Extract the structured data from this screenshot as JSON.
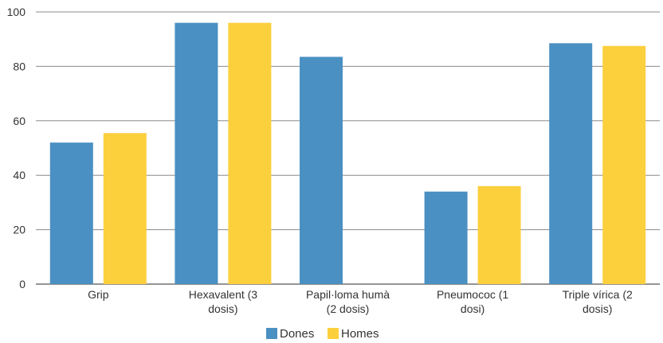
{
  "chart_data": {
    "type": "bar",
    "categories": [
      [
        "Grip"
      ],
      [
        "Hexavalent (3",
        "dosis)"
      ],
      [
        "Papil·loma humà",
        "(2 dosis)"
      ],
      [
        "Pneumococ (1",
        "dosi)"
      ],
      [
        "Triple vírica (2",
        "dosis)"
      ]
    ],
    "series": [
      {
        "name": "Dones",
        "color": "#4a90c2",
        "values": [
          52,
          96,
          83.5,
          34,
          88.5
        ]
      },
      {
        "name": "Homes",
        "color": "#fccf3d",
        "values": [
          55.5,
          96,
          null,
          36,
          87.5
        ]
      }
    ],
    "ylim": [
      0,
      100
    ],
    "yticks": [
      "0",
      "20",
      "40",
      "60",
      "80",
      "100"
    ],
    "grid": true,
    "legend_position": "bottom"
  }
}
